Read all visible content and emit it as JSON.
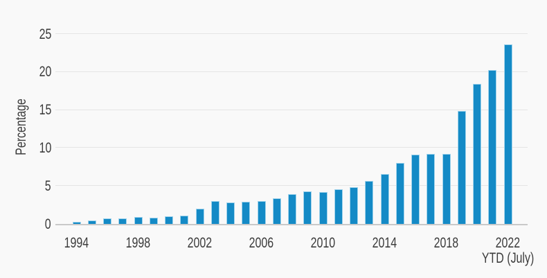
{
  "chart_data": {
    "type": "bar",
    "title": "",
    "ylabel": "Percentage",
    "x_note": "YTD (July)",
    "x": [
      1994,
      1995,
      1996,
      1997,
      1998,
      1999,
      2000,
      2001,
      2002,
      2003,
      2004,
      2005,
      2006,
      2007,
      2008,
      2009,
      2010,
      2011,
      2012,
      2013,
      2014,
      2015,
      2016,
      2017,
      2018,
      2019,
      2020,
      2021,
      2022
    ],
    "values": [
      0.3,
      0.5,
      0.7,
      0.7,
      0.9,
      0.8,
      1.0,
      1.1,
      2.0,
      3.0,
      2.8,
      2.9,
      3.0,
      3.4,
      3.9,
      4.3,
      4.2,
      4.6,
      4.8,
      5.7,
      6.6,
      8.0,
      9.1,
      9.2,
      9.2,
      14.9,
      18.4,
      20.3,
      23.6
    ],
    "yticks": [
      0,
      5,
      10,
      15,
      20,
      25
    ],
    "xticks": [
      1994,
      1998,
      2002,
      2006,
      2010,
      2014,
      2018,
      2022
    ],
    "ylim": [
      0,
      25
    ],
    "grid": "horizontal",
    "legend": "none",
    "colors": {
      "bar": "#148ac6",
      "bar_border": "#a2d4ec",
      "grid": "#e5e5e5",
      "axis": "#c9c9c9",
      "text": "#3c3c3c",
      "background": "#f9f9f9"
    }
  }
}
